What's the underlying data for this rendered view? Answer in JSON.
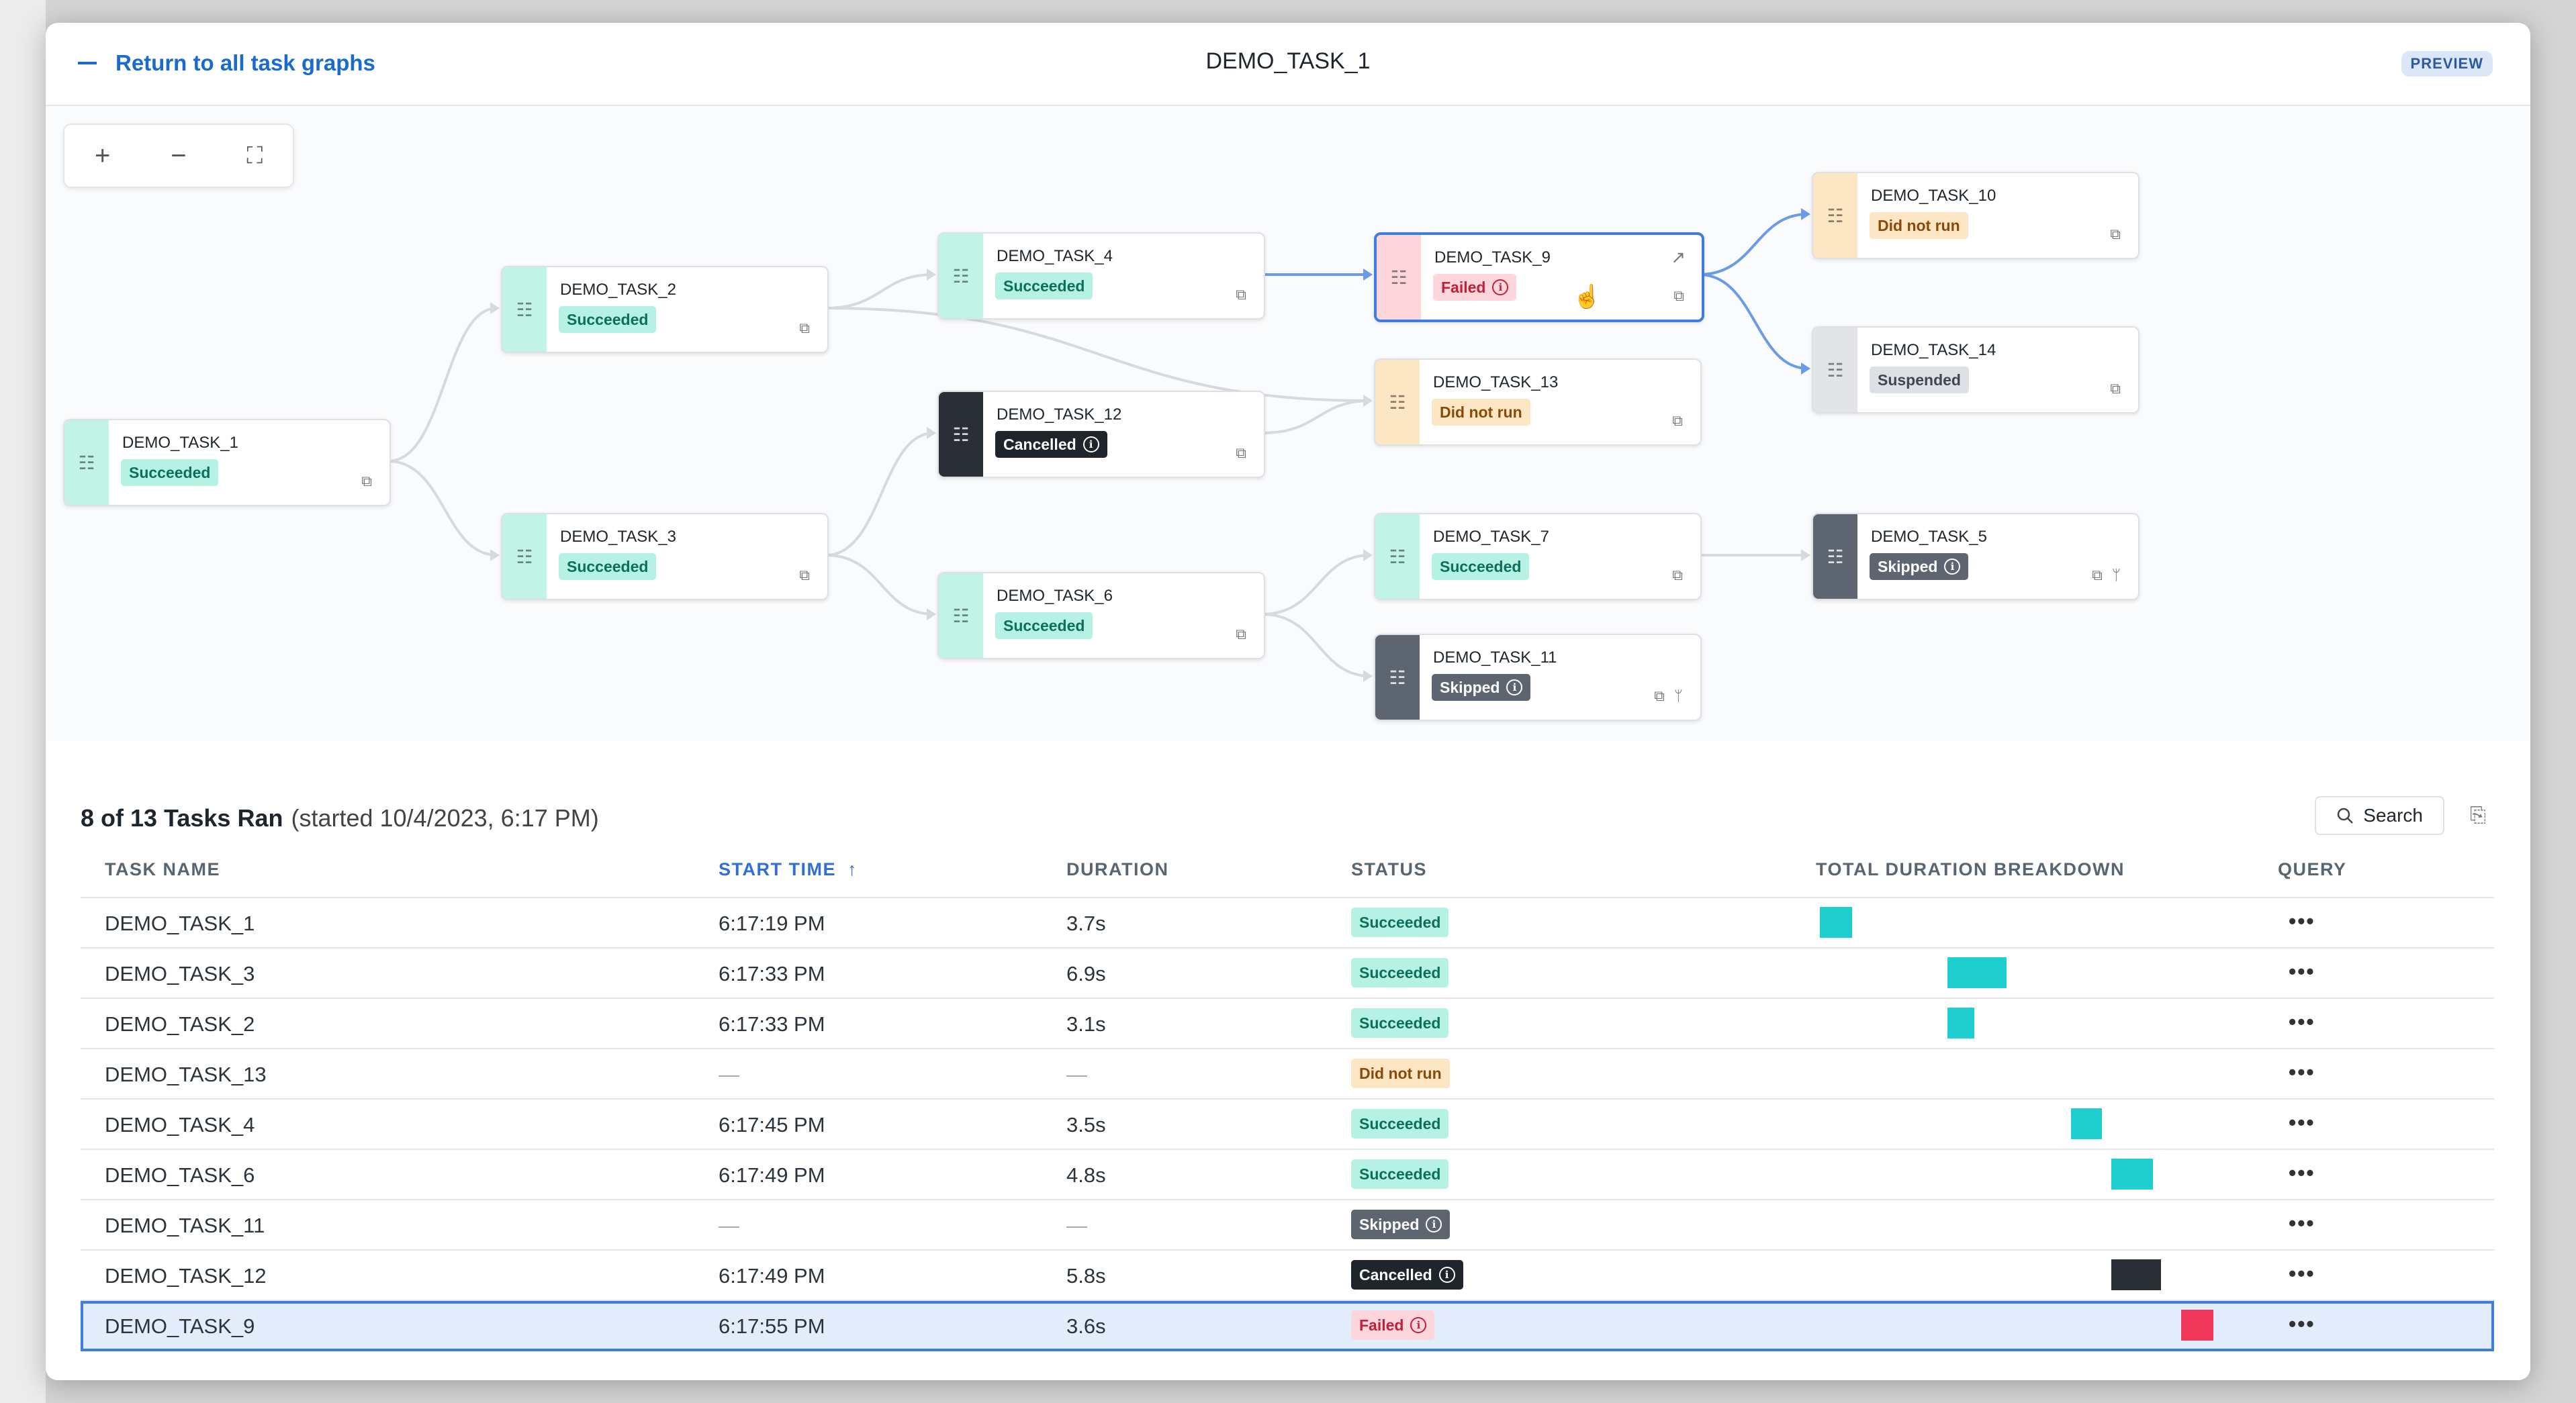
{
  "header": {
    "back_label": "Return to all task graphs",
    "title": "DEMO_TASK_1",
    "preview_badge": "PREVIEW"
  },
  "graph": {
    "zoom_controls": {
      "zoom_in": "+",
      "zoom_out": "−",
      "fit": "⛶"
    },
    "nodes": [
      {
        "name": "DEMO_TASK_1",
        "status": "Succeeded"
      },
      {
        "name": "DEMO_TASK_2",
        "status": "Succeeded"
      },
      {
        "name": "DEMO_TASK_3",
        "status": "Succeeded"
      },
      {
        "name": "DEMO_TASK_4",
        "status": "Succeeded"
      },
      {
        "name": "DEMO_TASK_12",
        "status": "Cancelled"
      },
      {
        "name": "DEMO_TASK_6",
        "status": "Succeeded"
      },
      {
        "name": "DEMO_TASK_9",
        "status": "Failed"
      },
      {
        "name": "DEMO_TASK_13",
        "status": "Did not run"
      },
      {
        "name": "DEMO_TASK_7",
        "status": "Succeeded"
      },
      {
        "name": "DEMO_TASK_11",
        "status": "Skipped"
      },
      {
        "name": "DEMO_TASK_10",
        "status": "Did not run"
      },
      {
        "name": "DEMO_TASK_14",
        "status": "Suspended"
      },
      {
        "name": "DEMO_TASK_5",
        "status": "Skipped"
      }
    ]
  },
  "runs": {
    "summary": "8 of 13 Tasks Ran",
    "started": "(started 10/4/2023, 6:17 PM)",
    "search_label": "Search",
    "columns": {
      "task_name": "TASK NAME",
      "start_time": "START TIME",
      "duration": "DURATION",
      "status": "STATUS",
      "breakdown": "TOTAL DURATION BREAKDOWN",
      "query": "QUERY"
    },
    "sort_arrow": "↑",
    "more_label": "•••",
    "rows": [
      {
        "name": "DEMO_TASK_1",
        "start": "6:17:19 PM",
        "duration": "3.7s",
        "status": "Succeeded"
      },
      {
        "name": "DEMO_TASK_3",
        "start": "6:17:33 PM",
        "duration": "6.9s",
        "status": "Succeeded"
      },
      {
        "name": "DEMO_TASK_2",
        "start": "6:17:33 PM",
        "duration": "3.1s",
        "status": "Succeeded"
      },
      {
        "name": "DEMO_TASK_13",
        "start": "—",
        "duration": "—",
        "status": "Did not run"
      },
      {
        "name": "DEMO_TASK_4",
        "start": "6:17:45 PM",
        "duration": "3.5s",
        "status": "Succeeded"
      },
      {
        "name": "DEMO_TASK_6",
        "start": "6:17:49 PM",
        "duration": "4.8s",
        "status": "Succeeded"
      },
      {
        "name": "DEMO_TASK_11",
        "start": "—",
        "duration": "—",
        "status": "Skipped"
      },
      {
        "name": "DEMO_TASK_12",
        "start": "6:17:49 PM",
        "duration": "5.8s",
        "status": "Cancelled"
      },
      {
        "name": "DEMO_TASK_9",
        "start": "6:17:55 PM",
        "duration": "3.6s",
        "status": "Failed"
      }
    ]
  },
  "colors": {
    "accent": "#3f7de0",
    "succeeded": "#1fcfcf",
    "cancelled": "#2a2f35",
    "failed": "#f0395a"
  }
}
